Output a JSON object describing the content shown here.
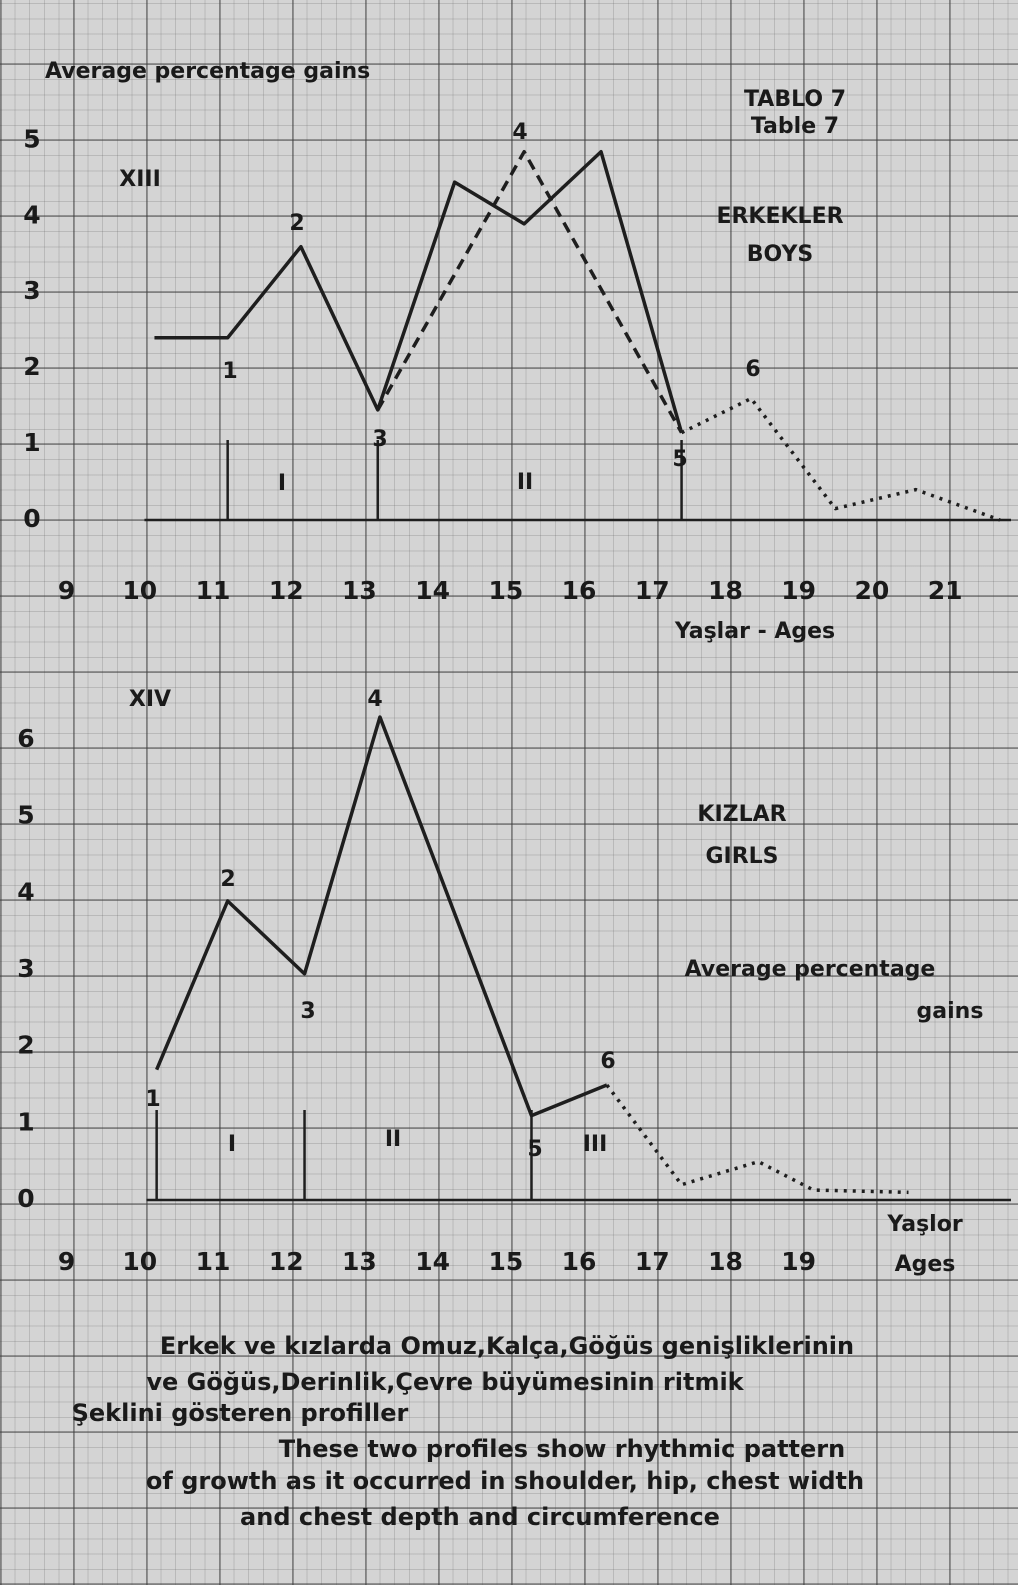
{
  "header": [
    "TABLO 7",
    "Table 7"
  ],
  "chart_data": [
    {
      "type": "line",
      "label": "XIII",
      "ylabel": "Average percentage gains",
      "group_label": [
        "ERKEKLER",
        "BOYS"
      ],
      "xlabel": "Yaşlar - Ages",
      "xlim": [
        8.5,
        21.9
      ],
      "ylim": [
        0,
        5.4
      ],
      "xticks": [
        9,
        10,
        11,
        12,
        13,
        14,
        15,
        16,
        17,
        18,
        19,
        20,
        21
      ],
      "yticks": [
        0,
        1,
        2,
        3,
        4,
        5
      ],
      "series": [
        {
          "style": "solid",
          "color": "#1e1e1e",
          "x": [
            10.2,
            11.2,
            12.2,
            13.25,
            14.3,
            15.25,
            16.3,
            17.4
          ],
          "values": [
            2.4,
            2.4,
            3.6,
            1.45,
            4.45,
            3.9,
            4.85,
            1.15
          ]
        },
        {
          "style": "dashed",
          "color": "#1e1e1e",
          "x": [
            13.25,
            15.25,
            17.4
          ],
          "values": [
            1.45,
            4.85,
            1.15
          ]
        },
        {
          "style": "dotted",
          "color": "#1e1e1e",
          "x": [
            17.4,
            18.35,
            19.5,
            20.6,
            21.75
          ],
          "values": [
            1.15,
            1.6,
            0.15,
            0.4,
            0
          ]
        }
      ],
      "dividers": [
        11.2,
        13.25,
        17.4
      ],
      "point_labels": [
        "1",
        "2",
        "3",
        "4",
        "5",
        "6"
      ],
      "phase_labels": [
        "I",
        "II"
      ]
    },
    {
      "type": "line",
      "label": "XIV",
      "ylabel": [
        "Average percentage",
        "gains"
      ],
      "group_label": [
        "KIZLAR",
        "GIRLS"
      ],
      "xlabel": [
        "Yaşlor",
        "Ages"
      ],
      "xlim": [
        8.5,
        21.9
      ],
      "ylim": [
        0,
        6.6
      ],
      "xticks": [
        9,
        10,
        11,
        12,
        13,
        14,
        15,
        16,
        17,
        18,
        19
      ],
      "yticks": [
        0,
        1,
        2,
        3,
        4,
        5,
        6
      ],
      "series": [
        {
          "style": "solid",
          "color": "#1e1e1e",
          "x": [
            10.23,
            11.2,
            12.25,
            13.28,
            15.35,
            16.38
          ],
          "values": [
            1.7,
            3.9,
            2.95,
            6.3,
            1.1,
            1.5
          ]
        },
        {
          "style": "dotted",
          "color": "#1e1e1e",
          "x": [
            16.38,
            17.4,
            18.45,
            19.2,
            20.5
          ],
          "values": [
            1.5,
            0.2,
            0.5,
            0.13,
            0.1
          ]
        }
      ],
      "dividers": [
        10.23,
        12.25,
        15.35
      ],
      "point_labels": [
        "1",
        "2",
        "3",
        "4",
        "5",
        "6"
      ],
      "phase_labels": [
        "I",
        "II",
        "III"
      ]
    }
  ],
  "caption": [
    "Erkek ve kızlarda Omuz,Kalça,Göğüs genişliklerinin",
    "ve Göğüs,Derinlik,Çevre büyümesinin ritmik",
    "Şeklini gösteren profiller",
    "These two profiles show rhythmic pattern",
    "of growth as it occurred in shoulder, hip, chest width",
    "and chest depth and circumference"
  ]
}
